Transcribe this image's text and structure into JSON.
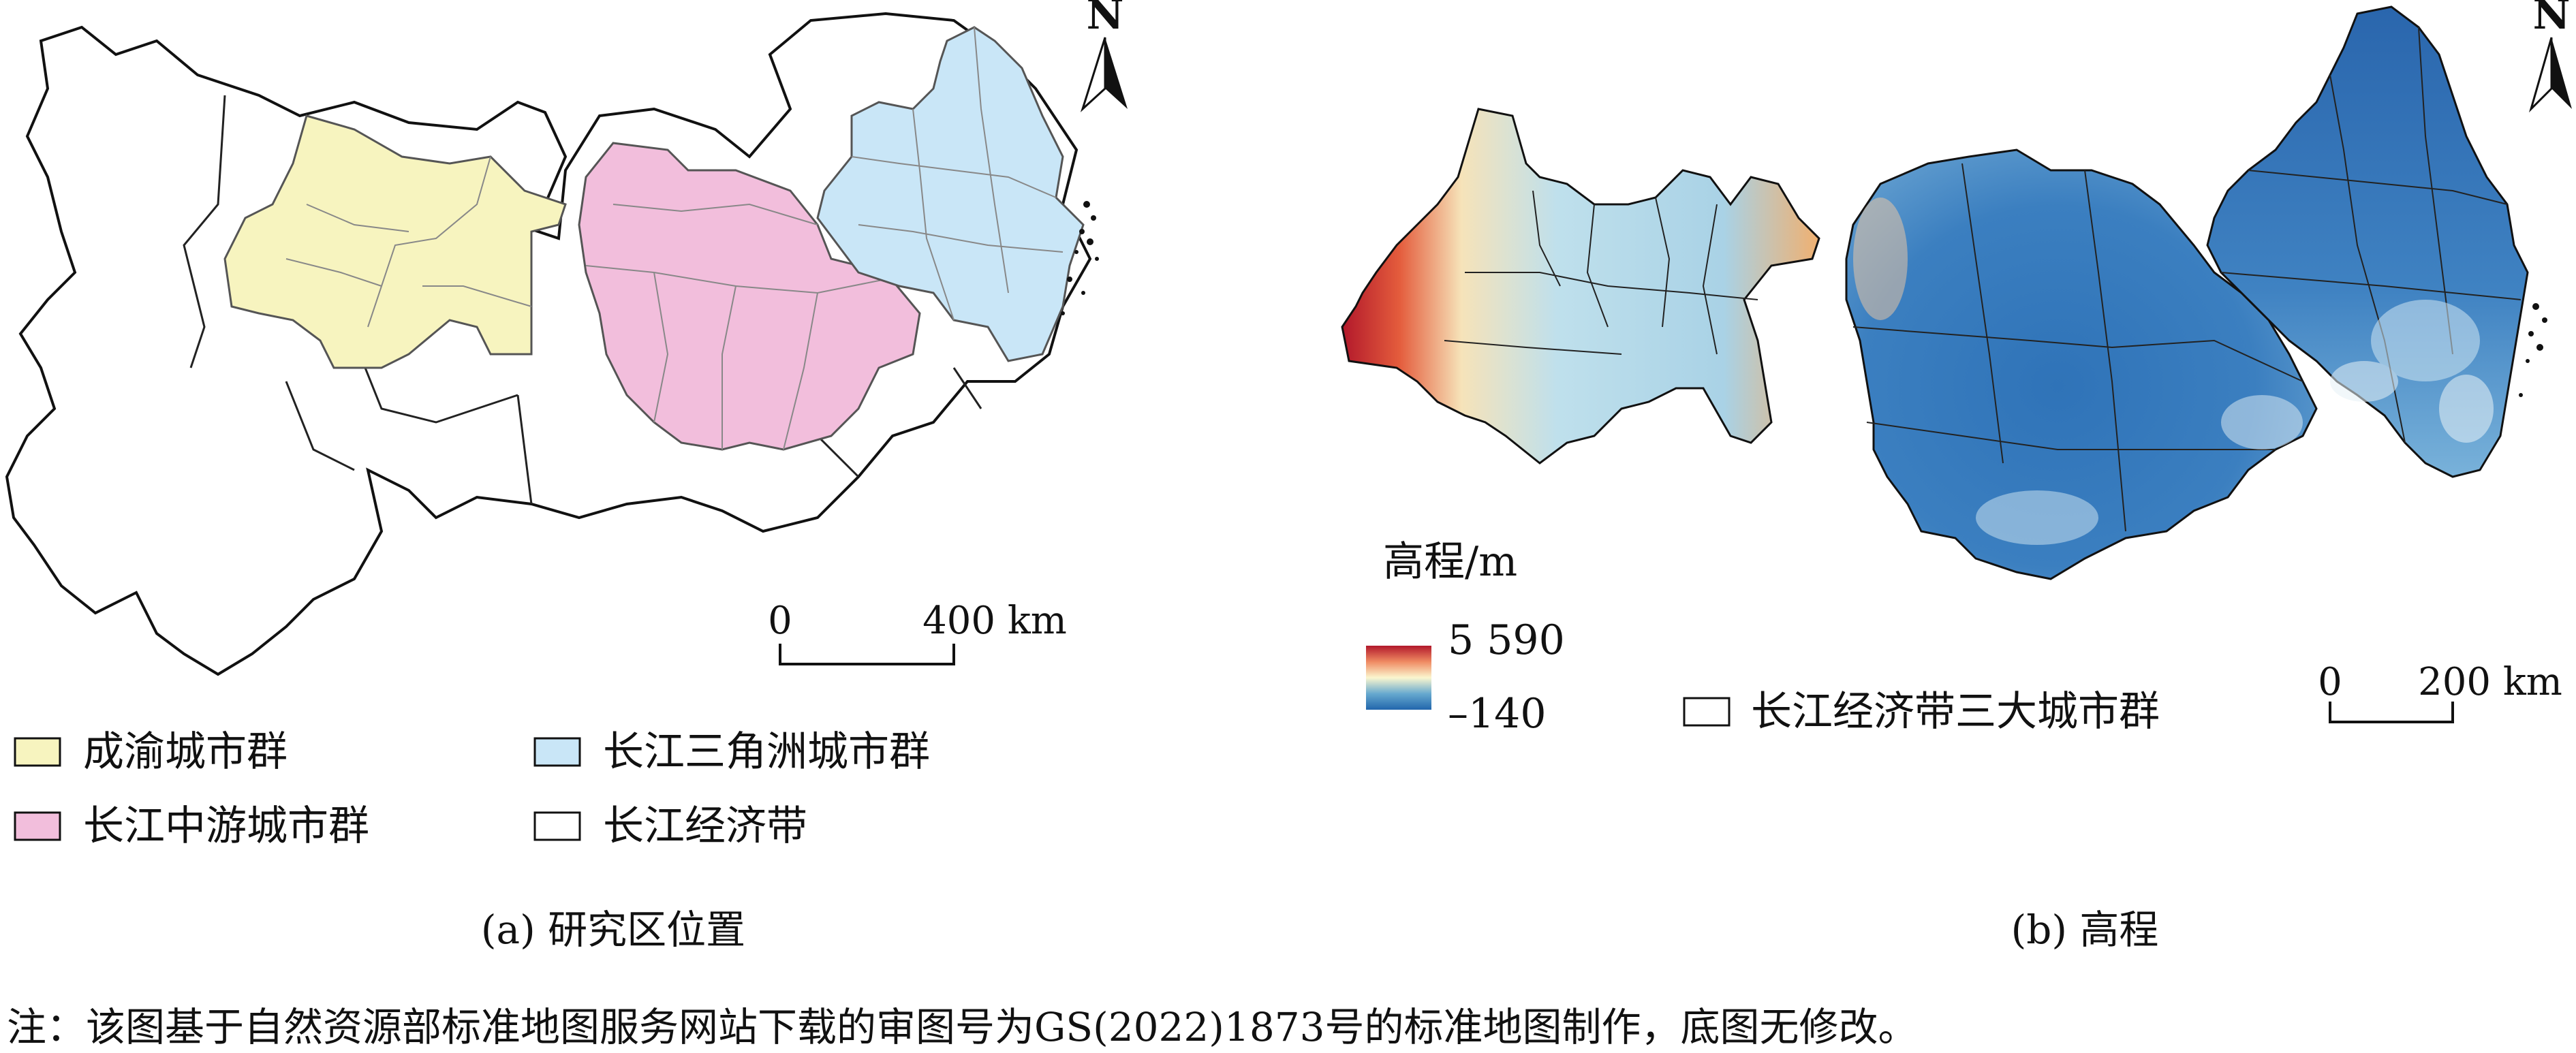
{
  "panel_a": {
    "caption": "(a) 研究区位置",
    "legend": [
      {
        "label": "成渝城市群",
        "color": "#f7f4bf"
      },
      {
        "label": "长江三角洲城市群",
        "color": "#c9e6f7"
      },
      {
        "label": "长江中游城市群",
        "color": "#f2bedc"
      },
      {
        "label": "长江经济带",
        "color": "#ffffff"
      }
    ],
    "scale": {
      "start": "0",
      "end": "400 km"
    },
    "north": "N"
  },
  "panel_b": {
    "caption": "(b) 高程",
    "elevation_title": "高程/m",
    "elevation_max": "5 590",
    "elevation_min": "–140",
    "legend_boundary": "长江经济带三大城市群",
    "scale": {
      "start": "0",
      "end": "200 km"
    },
    "north": "N",
    "colors": {
      "high": "#b2182b",
      "mid": "#fbf6cf",
      "low": "#2166ac"
    }
  },
  "note": "注：该图基于自然资源部标准地图服务网站下载的审图号为GS(2022)1873号的标准地图制作，底图无修改。"
}
